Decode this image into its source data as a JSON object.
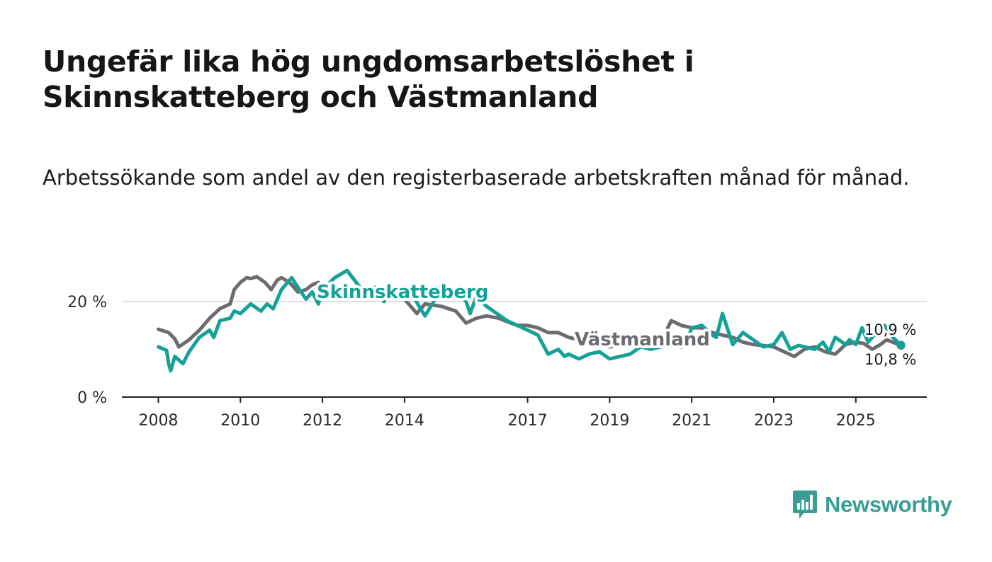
{
  "title": "Ungefär lika hög ungdomsarbetslöshet i Skinnskatteberg och Västmanland",
  "subtitle": "Arbetssökande som andel av den registerbaserade arbetskraften månad för månad.",
  "brand": {
    "name": "Newsworthy",
    "color": "#3a9d94"
  },
  "chart_data": {
    "type": "line",
    "xlabel": "",
    "ylabel": "",
    "xlim": [
      2007.5,
      2026.8
    ],
    "ylim": [
      0,
      30
    ],
    "y_ticks": [
      0,
      20
    ],
    "y_tick_labels": [
      "0 %",
      "20 %"
    ],
    "x_ticks": [
      2008,
      2010,
      2012,
      2014,
      2017,
      2019,
      2021,
      2023,
      2025
    ],
    "x_tick_labels": [
      "2008",
      "2010",
      "2012",
      "2014",
      "2017",
      "2019",
      "2021",
      "2023",
      "2025"
    ],
    "grid": true,
    "series": [
      {
        "name": "Västmanland",
        "color": "#6e6a70",
        "label": "Västmanland",
        "end_label": "10,8 %",
        "x": [
          2008.0,
          2008.25,
          2008.4,
          2008.5,
          2008.75,
          2009.0,
          2009.25,
          2009.5,
          2009.75,
          2009.85,
          2010.0,
          2010.15,
          2010.25,
          2010.4,
          2010.6,
          2010.75,
          2010.9,
          2011.0,
          2011.2,
          2011.4,
          2011.6,
          2011.75,
          2011.9,
          2012.0,
          2012.3,
          2012.6,
          2013.0,
          2013.5,
          2014.0,
          2014.3,
          2014.5,
          2014.9,
          2015.25,
          2015.5,
          2015.75,
          2016.0,
          2016.3,
          2016.5,
          2016.75,
          2017.0,
          2017.25,
          2017.5,
          2017.75,
          2018.0,
          2018.25,
          2018.5,
          2018.75,
          2019.0,
          2019.25,
          2019.5,
          2019.75,
          2020.0,
          2020.25,
          2020.5,
          2020.75,
          2021.0,
          2021.25,
          2021.5,
          2021.75,
          2022.0,
          2022.25,
          2022.5,
          2022.75,
          2023.0,
          2023.25,
          2023.5,
          2023.75,
          2024.0,
          2024.25,
          2024.5,
          2024.75,
          2025.0,
          2025.2,
          2025.4,
          2025.6,
          2025.75,
          2025.9,
          2026.1
        ],
        "values": [
          14.2,
          13.5,
          12.2,
          10.5,
          12.0,
          14.0,
          16.5,
          18.5,
          19.5,
          22.5,
          24.0,
          25.0,
          24.8,
          25.2,
          24.0,
          22.5,
          24.5,
          25.0,
          24.0,
          22.0,
          22.5,
          23.5,
          24.0,
          23.0,
          21.5,
          21.0,
          21.5,
          21.0,
          20.5,
          17.5,
          19.5,
          19.0,
          18.0,
          15.5,
          16.5,
          17.0,
          16.5,
          15.8,
          15.0,
          15.0,
          14.5,
          13.5,
          13.5,
          12.5,
          12.0,
          11.5,
          11.0,
          10.5,
          11.0,
          10.8,
          11.2,
          11.0,
          11.5,
          16.0,
          15.0,
          14.5,
          14.5,
          13.5,
          13.0,
          12.5,
          11.5,
          11.0,
          10.8,
          10.5,
          9.5,
          8.5,
          10.0,
          10.5,
          9.5,
          9.0,
          11.0,
          11.5,
          11.2,
          10.0,
          11.0,
          12.0,
          11.5,
          10.8
        ]
      },
      {
        "name": "Skinnskatteberg",
        "color": "#15a197",
        "label": "Skinnskatteberg",
        "end_label": "10,9 %",
        "x": [
          2008.0,
          2008.2,
          2008.25,
          2008.3,
          2008.4,
          2008.6,
          2008.75,
          2009.0,
          2009.25,
          2009.35,
          2009.5,
          2009.75,
          2009.85,
          2010.0,
          2010.25,
          2010.5,
          2010.65,
          2010.8,
          2011.0,
          2011.25,
          2011.4,
          2011.6,
          2011.75,
          2011.9,
          2012.0,
          2012.3,
          2012.6,
          2013.0,
          2013.3,
          2013.5,
          2013.6,
          2013.75,
          2014.0,
          2014.25,
          2014.5,
          2014.75,
          2015.0,
          2015.25,
          2015.5,
          2015.6,
          2015.75,
          2016.0,
          2016.25,
          2016.5,
          2016.75,
          2017.0,
          2017.25,
          2017.5,
          2017.75,
          2017.9,
          2018.0,
          2018.25,
          2018.5,
          2018.75,
          2019.0,
          2019.25,
          2019.5,
          2019.75,
          2020.0,
          2020.25,
          2020.5,
          2020.75,
          2020.9,
          2021.0,
          2021.25,
          2021.5,
          2021.6,
          2021.75,
          2022.0,
          2022.25,
          2022.5,
          2022.75,
          2023.0,
          2023.2,
          2023.4,
          2023.6,
          2023.75,
          2024.0,
          2024.2,
          2024.35,
          2024.5,
          2024.75,
          2024.85,
          2025.0,
          2025.15,
          2025.3,
          2025.5,
          2025.7,
          2025.9,
          2026.1
        ],
        "values": [
          10.5,
          9.8,
          7.0,
          5.5,
          8.5,
          7.0,
          9.5,
          12.5,
          14.0,
          12.5,
          16.0,
          16.5,
          18.0,
          17.5,
          19.5,
          18.0,
          19.5,
          18.5,
          22.5,
          25.0,
          23.0,
          20.5,
          22.0,
          19.5,
          22.5,
          25.0,
          26.5,
          22.0,
          23.0,
          20.0,
          22.0,
          21.5,
          22.0,
          20.5,
          17.0,
          20.5,
          21.5,
          22.5,
          20.0,
          17.5,
          21.0,
          19.0,
          17.5,
          16.0,
          15.0,
          14.0,
          13.0,
          9.0,
          10.0,
          8.5,
          9.0,
          8.0,
          9.0,
          9.5,
          8.0,
          8.5,
          9.0,
          10.5,
          10.0,
          10.5,
          11.0,
          10.5,
          12.0,
          14.5,
          15.0,
          13.0,
          12.5,
          17.5,
          11.0,
          13.5,
          12.0,
          10.5,
          11.0,
          13.5,
          10.0,
          10.8,
          10.5,
          10.0,
          11.5,
          9.5,
          12.5,
          11.0,
          12.0,
          11.0,
          14.5,
          11.5,
          13.5,
          15.0,
          12.5,
          10.9
        ]
      }
    ]
  }
}
